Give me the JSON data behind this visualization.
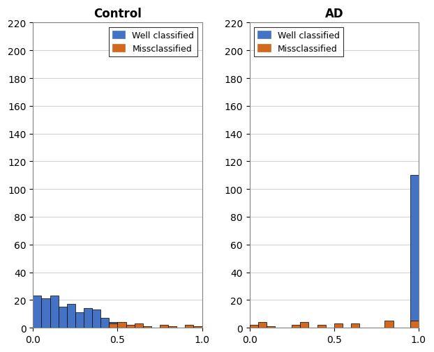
{
  "control_title": "Control",
  "ad_title": "AD",
  "legend_well": "Well classified",
  "legend_miss": "Missclassified",
  "color_well": "#4472C4",
  "color_miss": "#D2691E",
  "color_edge": "#000000",
  "color_grid": "#d3d3d3",
  "color_spine": "#808080",
  "ylim": [
    0,
    220
  ],
  "xlim": [
    0,
    1
  ],
  "yticks": [
    0,
    20,
    40,
    60,
    80,
    100,
    120,
    140,
    160,
    180,
    200,
    220
  ],
  "xticks": [
    0,
    0.5,
    1
  ],
  "bin_edges": [
    0.0,
    0.05,
    0.1,
    0.15,
    0.2,
    0.25,
    0.3,
    0.35,
    0.4,
    0.45,
    0.5,
    0.55,
    0.6,
    0.65,
    0.7,
    0.75,
    0.8,
    0.85,
    0.9,
    0.95,
    1.0
  ],
  "control_well": [
    23,
    21,
    23,
    15,
    17,
    11,
    14,
    13,
    7,
    4,
    0,
    0,
    0,
    0,
    0,
    0,
    0,
    0,
    0,
    0
  ],
  "control_miss": [
    0,
    0,
    0,
    0,
    0,
    0,
    0,
    0,
    0,
    3,
    4,
    2,
    3,
    1,
    0,
    2,
    1,
    0,
    2,
    1
  ],
  "ad_well": [
    0,
    0,
    0,
    0,
    0,
    0,
    0,
    0,
    0,
    0,
    0,
    0,
    0,
    0,
    0,
    0,
    0,
    0,
    0,
    110
  ],
  "ad_miss": [
    2,
    4,
    1,
    0,
    0,
    2,
    4,
    0,
    2,
    0,
    3,
    0,
    3,
    0,
    0,
    0,
    5,
    0,
    0,
    5
  ],
  "title_fontsize": 12,
  "tick_fontsize": 10,
  "legend_fontsize": 9,
  "fig_width": 6.22,
  "fig_height": 5.06,
  "dpi": 100
}
